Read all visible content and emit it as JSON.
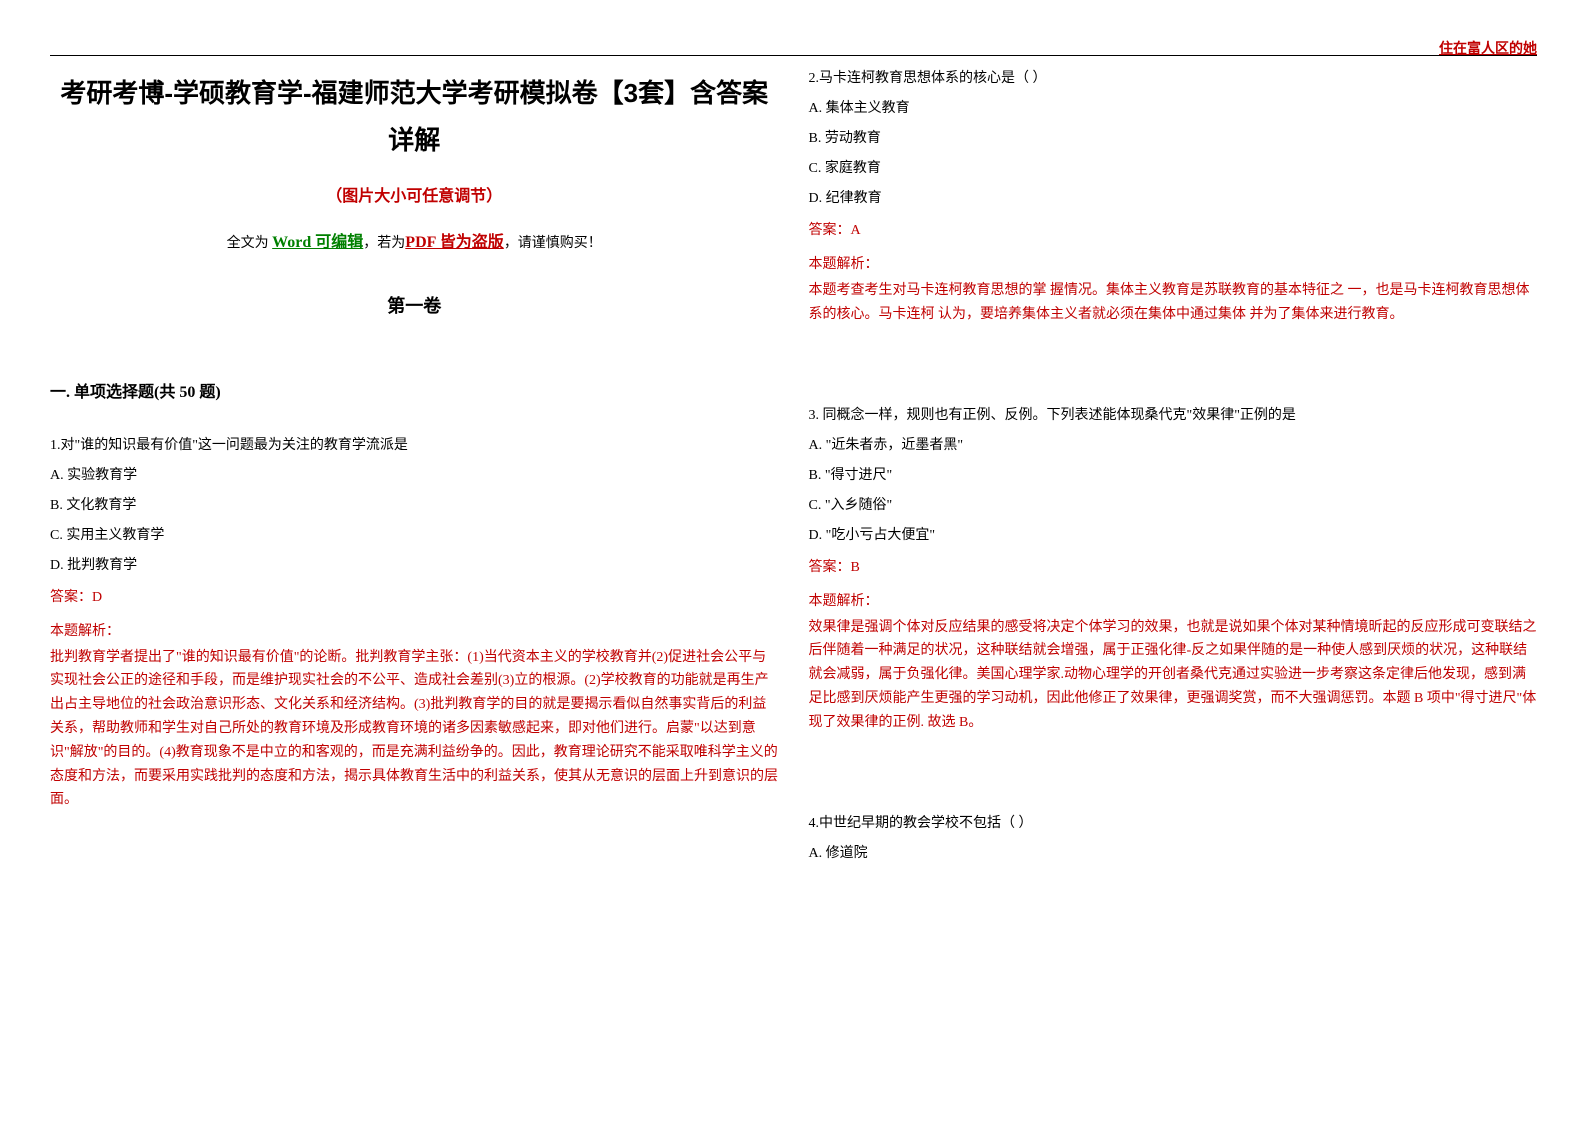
{
  "header": {
    "corner_text": "住在富人区的她"
  },
  "title": {
    "main": "考研考博-学硕教育学-福建师范大学考研模拟卷【3套】含答案详解",
    "subtitle": "（图片大小可任意调节）",
    "edit_prefix": "全文为 ",
    "edit_word": "Word 可编辑",
    "edit_mid": "，若为",
    "edit_pdf": "PDF 皆为盗版",
    "edit_suffix": "，请谨慎购买！",
    "volume": "第一卷"
  },
  "section": {
    "title": "一. 单项选择题(共 50 题)"
  },
  "questions": [
    {
      "num": "1.",
      "text": "对\"谁的知识最有价值\"这一问题最为关注的教育学流派是",
      "choices": {
        "a": "A. 实验教育学",
        "b": "B. 文化教育学",
        "c": "C. 实用主义教育学",
        "d": "D. 批判教育学"
      },
      "answer_label": "答案：D",
      "analysis_label": "本题解析：",
      "analysis": "批判教育学者提出了\"谁的知识最有价值\"的论断。批判教育学主张：(1)当代资本主义的学校教育并(2)促进社会公平与实现社会公正的途径和手段，而是维护现实社会的不公平、造成社会差别(3)立的根源。(2)学校教育的功能就是再生产出占主导地位的社会政治意识形态、文化关系和经济结构。(3)批判教育学的目的就是要揭示看似自然事实背后的利益关系，帮助教师和学生对自己所处的教育环境及形成教育环境的诸多因素敏感起来，即对他们进行。启蒙\"以达到意识\"解放\"的目的。(4)教育现象不是中立的和客观的，而是充满利益纷争的。因此，教育理论研究不能采取唯科学主义的态度和方法，而要采用实践批判的态度和方法，揭示具体教育生活中的利益关系，使其从无意识的层面上升到意识的层面。"
    },
    {
      "num": "2.",
      "text": "马卡连柯教育思想体系的核心是（ ）",
      "choices": {
        "a": "A. 集体主义教育",
        "b": "B. 劳动教育",
        "c": "C. 家庭教育",
        "d": "D. 纪律教育"
      },
      "answer_label": "答案：A",
      "analysis_label": "本题解析：",
      "analysis": "本题考查考生对马卡连柯教育思想的掌 握情况。集体主义教育是苏联教育的基本特征之 一，也是马卡连柯教育思想体系的核心。马卡连柯 认为，要培养集体主义者就必须在集体中通过集体 并为了集体来进行教育。"
    },
    {
      "num": "3.",
      "text": " 同概念一样，规则也有正例、反例。下列表述能体现桑代克\"效果律\"正例的是",
      "choices": {
        "a": "A. \"近朱者赤，近墨者黑\"",
        "b": "B. \"得寸进尺\"",
        "c": "C. \"入乡随俗\"",
        "d": "D. \"吃小亏占大便宜\""
      },
      "answer_label": "答案：B",
      "analysis_label": "本题解析：",
      "analysis": "效果律是强调个体对反应结果的感受将决定个体学习的效果，也就是说如果个体对某种情境昕起的反应形成可变联结之后伴随着一种满足的状况，这种联结就会增强，属于正强化律-反之如果伴随的是一种使人感到厌烦的状况，这种联结就会减弱，属于负强化律。美国心理学家.动物心理学的开创者桑代克通过实验进一步考察这条定律后他发现，感到满足比感到厌烦能产生更强的学习动机，因此他修正了效果律，更强调奖赏，而不大强调惩罚。本题 B 项中\"得寸进尺\"体现了效果律的正例. 故选 B。"
    },
    {
      "num": "4.",
      "text": "中世纪早期的教会学校不包括（ ）",
      "choices": {
        "a": "A. 修道院"
      }
    }
  ],
  "colors": {
    "red": "#c00000",
    "green": "#008000",
    "text": "#000000",
    "background": "#ffffff"
  },
  "typography": {
    "title_fontsize": 26,
    "subtitle_fontsize": 16,
    "body_fontsize": 14,
    "section_fontsize": 16,
    "volume_fontsize": 18
  }
}
